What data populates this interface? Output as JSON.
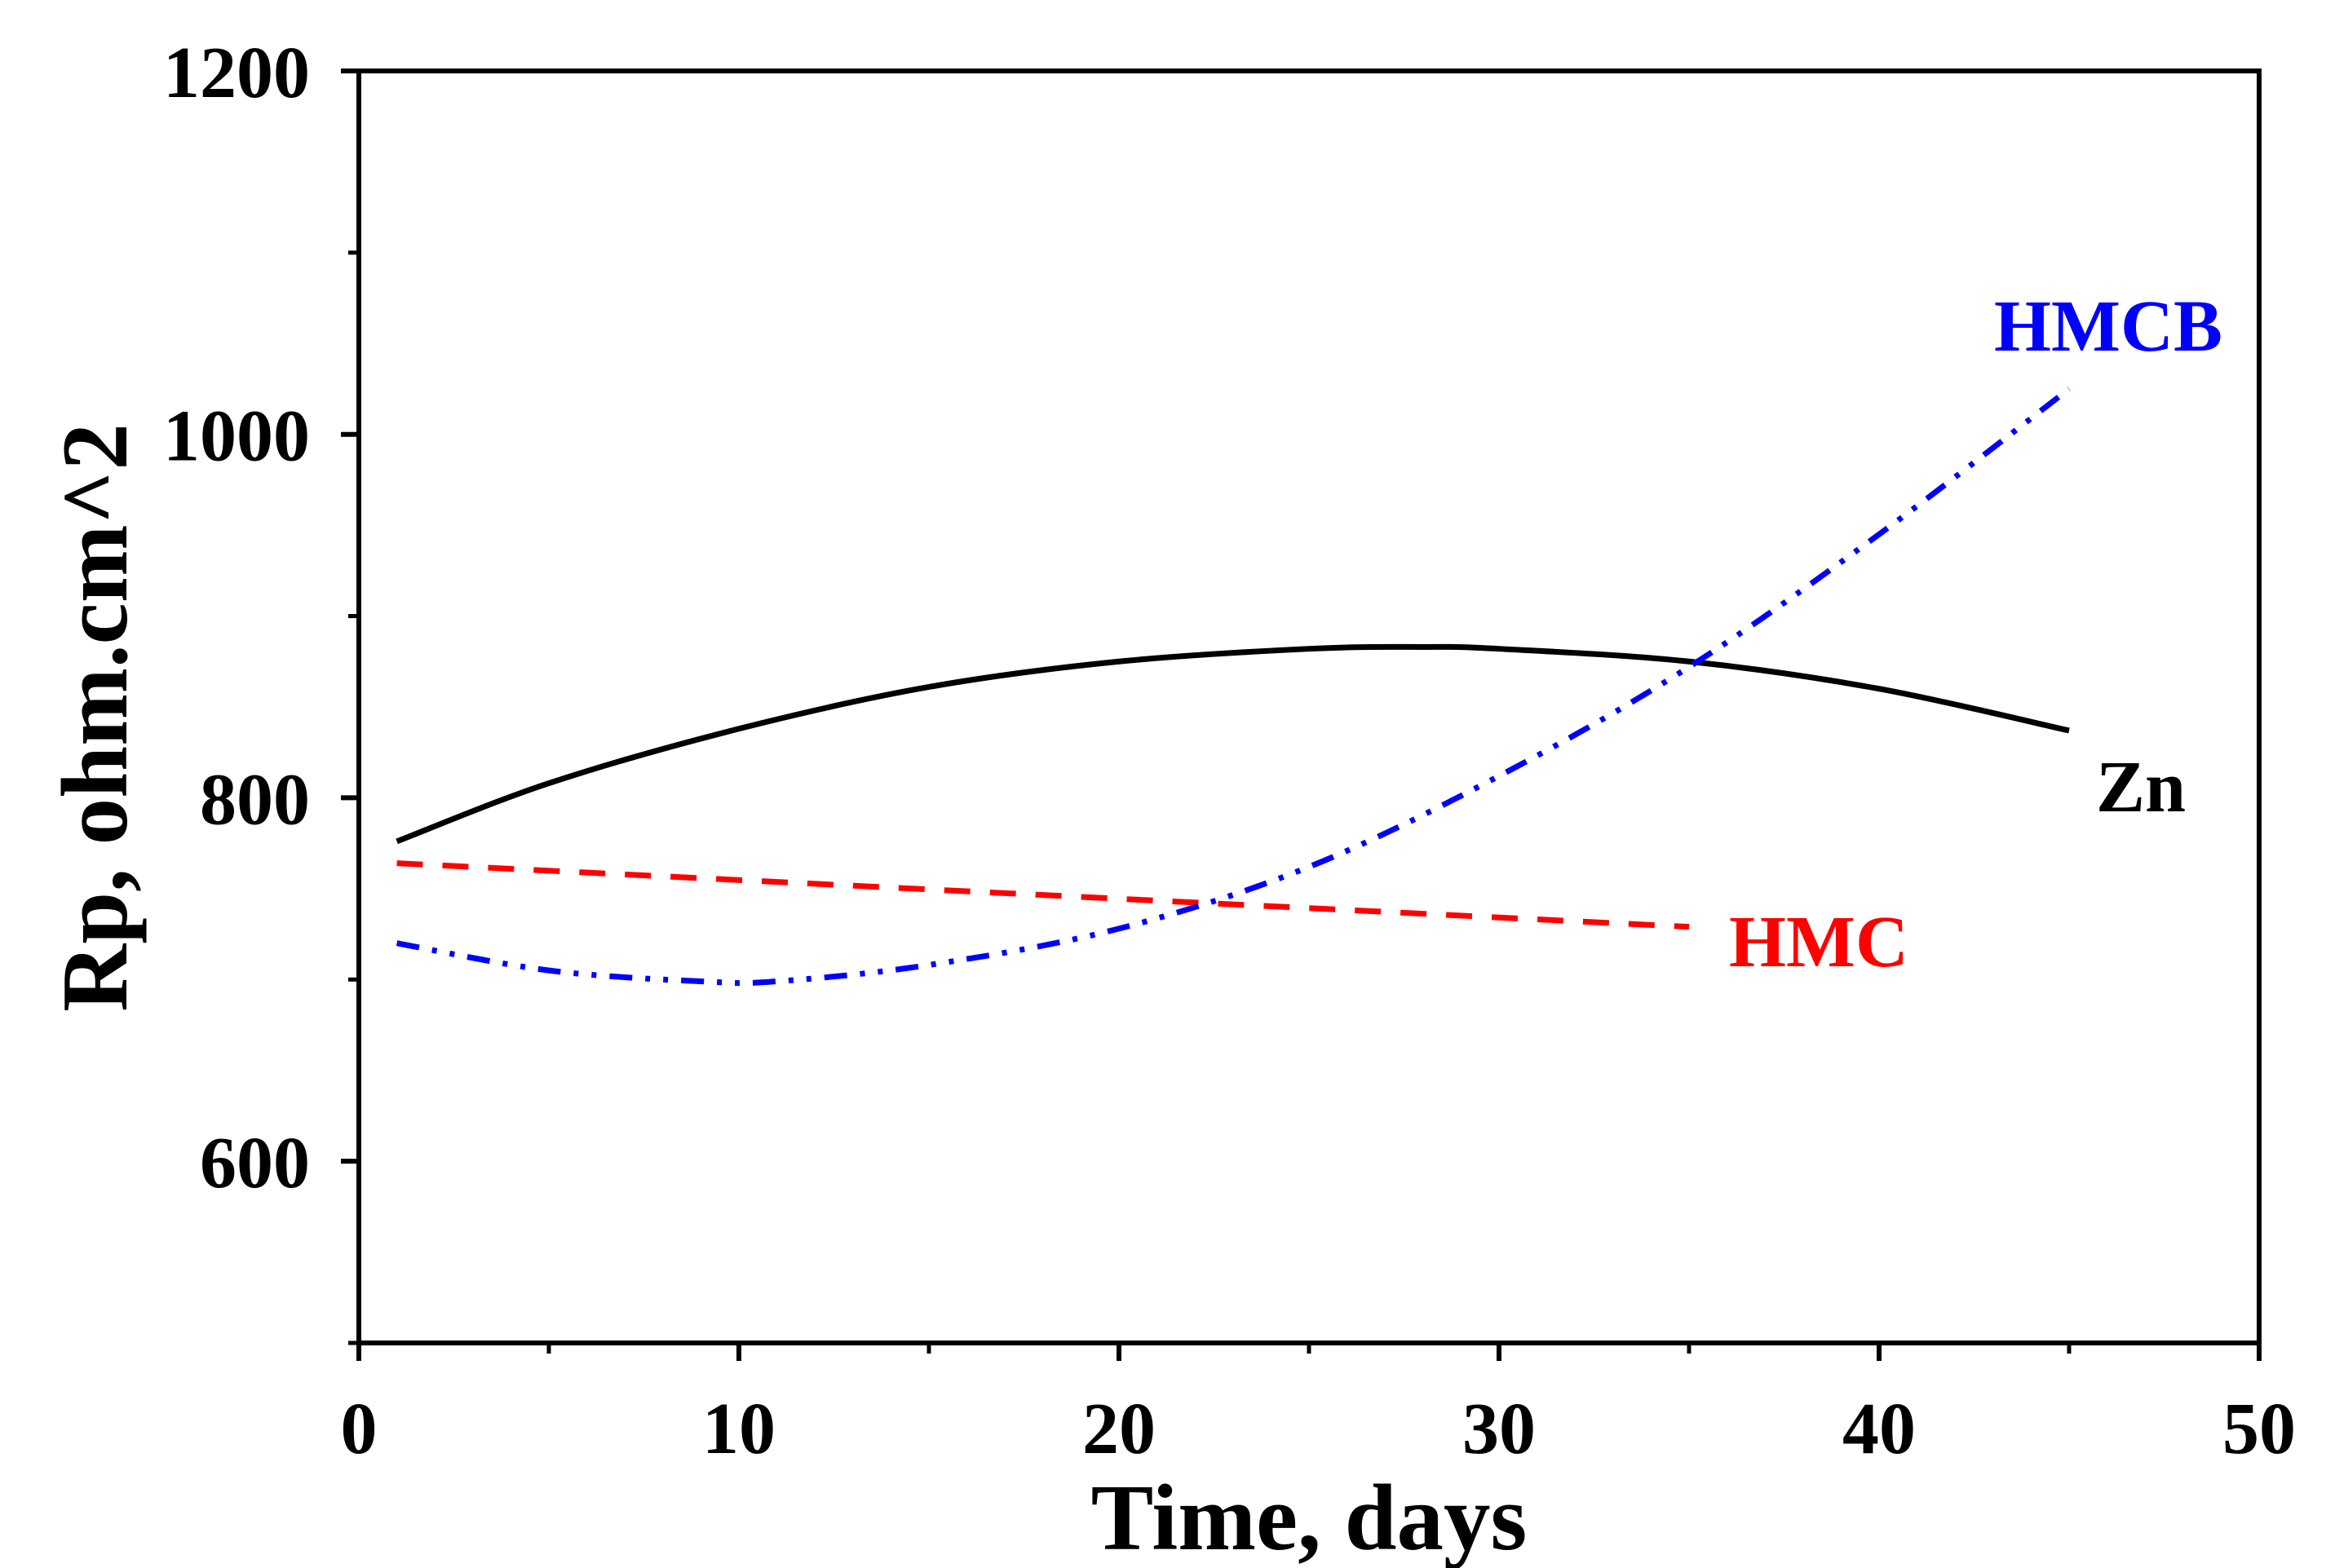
{
  "chart_data": {
    "type": "line",
    "title": "",
    "xlabel": "Time, days",
    "ylabel": "Rp, ohm.cm^2",
    "xlim": [
      0,
      50
    ],
    "ylim": [
      500,
      1200
    ],
    "x_ticks": [
      0,
      10,
      20,
      30,
      40,
      50
    ],
    "x_tick_labels": [
      "0",
      "10",
      "20",
      "30",
      "40",
      "50"
    ],
    "y_ticks": [
      600,
      800,
      1000,
      1200
    ],
    "y_tick_labels": [
      "600",
      "800",
      "1000",
      "1200"
    ],
    "grid": false,
    "series": [
      {
        "name": "Zn",
        "label": "Zn",
        "color": "#000000",
        "style": "solid",
        "x": [
          1,
          5,
          10,
          15,
          20,
          25,
          28,
          30,
          35,
          40,
          45
        ],
        "y": [
          776,
          808,
          838,
          861,
          875,
          882,
          883,
          882,
          875,
          860,
          837
        ]
      },
      {
        "name": "HMC",
        "label": "HMC",
        "color": "#ff0000",
        "style": "dash",
        "x": [
          1,
          35
        ],
        "y": [
          764,
          729
        ]
      },
      {
        "name": "HMCB",
        "label": "HMCB",
        "color": "#0000ff",
        "style": "dashdotdot",
        "x": [
          1,
          5,
          9,
          11,
          15,
          20,
          25,
          30,
          35,
          40,
          45
        ],
        "y": [
          720,
          705,
          699,
          699,
          708,
          728,
          762,
          812,
          872,
          945,
          1025
        ]
      }
    ]
  }
}
